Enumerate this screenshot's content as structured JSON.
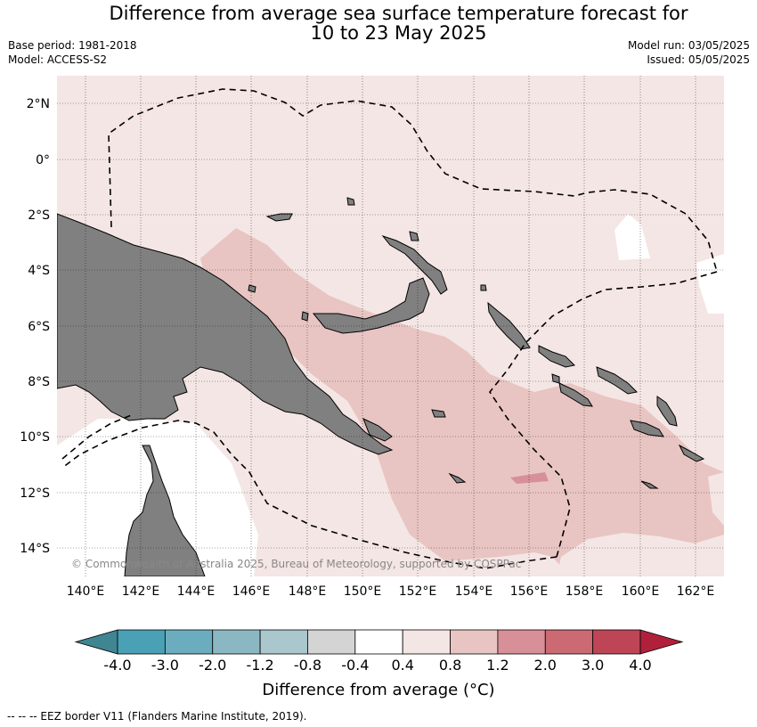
{
  "header": {
    "title_line1": "Difference from average sea surface temperature forecast for",
    "title_line2": "10 to 23 May 2025",
    "base_period": "Base period: 1981-2018",
    "model": "Model: ACCESS-S2",
    "model_run": "Model run: 03/05/2025",
    "issued": "Issued: 05/05/2025"
  },
  "map": {
    "lat_labels": [
      "2°N",
      "0°",
      "2°S",
      "4°S",
      "6°S",
      "8°S",
      "10°S",
      "12°S",
      "14°S"
    ],
    "lon_labels": [
      "140°E",
      "142°E",
      "144°E",
      "146°E",
      "148°E",
      "150°E",
      "152°E",
      "154°E",
      "156°E",
      "158°E",
      "160°E",
      "162°E"
    ],
    "copyright": "© Commonwealth of Australia 2025, Bureau of Meteorology, supported by COSPPac",
    "land_color": "#808080",
    "grid": true
  },
  "colorbar": {
    "ticks": [
      "-4.0",
      "-3.0",
      "-2.0",
      "-1.2",
      "-0.8",
      "-0.4",
      "0.4",
      "0.8",
      "1.2",
      "2.0",
      "3.0",
      "4.0"
    ],
    "colors": [
      "#3f8592",
      "#4aa0b4",
      "#6badbe",
      "#8bb7c3",
      "#a9c7cc",
      "#d4d4d4",
      "#ffffff",
      "#f4e6e4",
      "#e8c5c2",
      "#d78f98",
      "#cc6a73",
      "#be4556",
      "#b0203a"
    ],
    "title": "Difference from average (°C)"
  },
  "legend_note": "--  --  -- EEZ border V11 (Flanders Marine Institute, 2019)."
}
